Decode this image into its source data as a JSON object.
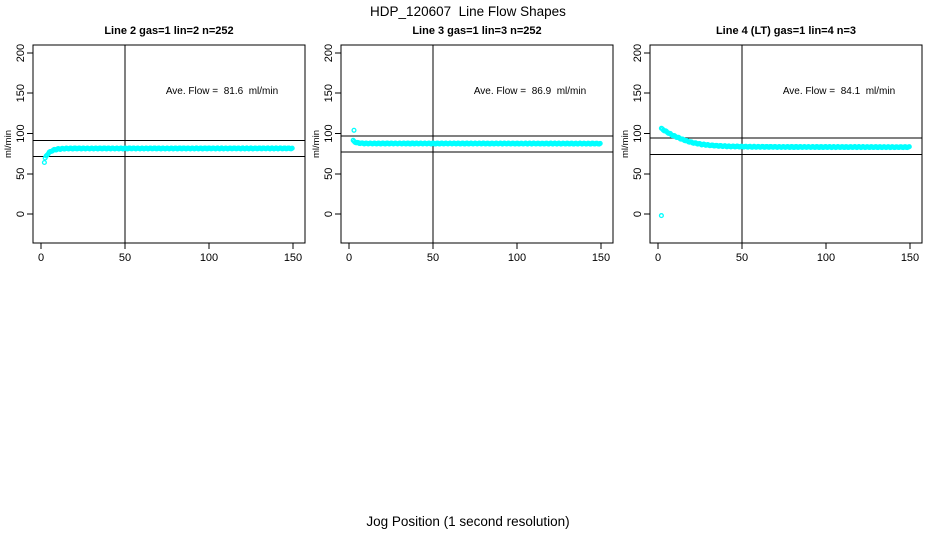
{
  "title": "HDP_120607  Line Flow Shapes",
  "xlabel": "Jog Position (1 second resolution)",
  "colors": {
    "background": "#ffffff",
    "axis": "#000000",
    "points": "#00FFFF"
  },
  "chart_data": [
    {
      "type": "scatter",
      "title": "Line 2 gas=1 lin=2 n=252",
      "n": 252,
      "ave_flow": 81.6,
      "ave_flow_label": "Ave. Flow =  81.6  ml/min",
      "ylabel": "ml/min",
      "x_ticks": [
        "0",
        "50",
        "100",
        "150"
      ],
      "x_tick_values": [
        0,
        50,
        100,
        150
      ],
      "y_ticks": [
        "0",
        "50",
        "100",
        "150",
        "200"
      ],
      "y_tick_values": [
        0,
        50,
        100,
        150,
        200
      ],
      "xlim": [
        0,
        150
      ],
      "ylim": [
        0,
        200
      ],
      "vline_x": 50,
      "ref_lines_y": [
        71.6,
        91.6
      ],
      "series_keypoints": [
        [
          2.5,
          69
        ],
        [
          3,
          71.5
        ],
        [
          4,
          74.5
        ],
        [
          5,
          76.5
        ],
        [
          6,
          78
        ],
        [
          8,
          79.8
        ],
        [
          10,
          80.6
        ],
        [
          14,
          81.2
        ],
        [
          20,
          81.4
        ],
        [
          150,
          81.5
        ]
      ],
      "outliers": [
        [
          2,
          64
        ]
      ],
      "marker": "open-circle",
      "point_color": "#00FFFF",
      "jitter": 0.6,
      "point_step": 0.6
    },
    {
      "type": "scatter",
      "title": "Line 3 gas=1 lin=3 n=252",
      "n": 252,
      "ave_flow": 86.9,
      "ave_flow_label": "Ave. Flow =  86.9  ml/min",
      "ylabel": "ml/min",
      "x_ticks": [
        "0",
        "50",
        "100",
        "150"
      ],
      "x_tick_values": [
        0,
        50,
        100,
        150
      ],
      "y_ticks": [
        "0",
        "50",
        "100",
        "150",
        "200"
      ],
      "y_tick_values": [
        0,
        50,
        100,
        150,
        200
      ],
      "xlim": [
        0,
        150
      ],
      "ylim": [
        0,
        200
      ],
      "vline_x": 50,
      "ref_lines_y": [
        76.9,
        96.9
      ],
      "series_keypoints": [
        [
          2.5,
          91
        ],
        [
          3,
          90
        ],
        [
          4,
          89
        ],
        [
          6,
          88
        ],
        [
          10,
          87.6
        ],
        [
          150,
          87.4
        ]
      ],
      "outliers": [
        [
          3,
          104
        ]
      ],
      "marker": "open-circle",
      "point_color": "#00FFFF",
      "jitter": 0.6,
      "point_step": 0.6
    },
    {
      "type": "scatter",
      "title": "Line 4 (LT) gas=1 lin=4 n=3",
      "n": 3,
      "ave_flow": 84.1,
      "ave_flow_label": "Ave. Flow =  84.1  ml/min",
      "ylabel": "ml/min",
      "x_ticks": [
        "0",
        "50",
        "100",
        "150"
      ],
      "x_tick_values": [
        0,
        50,
        100,
        150
      ],
      "y_ticks": [
        "0",
        "50",
        "100",
        "150",
        "200"
      ],
      "y_tick_values": [
        0,
        50,
        100,
        150,
        200
      ],
      "xlim": [
        0,
        150
      ],
      "ylim": [
        0,
        200
      ],
      "vline_x": 50,
      "ref_lines_y": [
        74.1,
        94.1
      ],
      "series_keypoints": [
        [
          2,
          106
        ],
        [
          4,
          103.5
        ],
        [
          6,
          101
        ],
        [
          8,
          98.5
        ],
        [
          10,
          96.5
        ],
        [
          13,
          94
        ],
        [
          16,
          91.5
        ],
        [
          19,
          89.5
        ],
        [
          22,
          88
        ],
        [
          26,
          86.5
        ],
        [
          30,
          85.5
        ],
        [
          35,
          84.7
        ],
        [
          42,
          84
        ],
        [
          55,
          83.5
        ],
        [
          80,
          83.2
        ],
        [
          150,
          83
        ]
      ],
      "outliers": [
        [
          2,
          -2
        ]
      ],
      "marker": "open-circle",
      "point_color": "#00FFFF",
      "jitter": 0.6,
      "point_step": 0.6
    }
  ]
}
